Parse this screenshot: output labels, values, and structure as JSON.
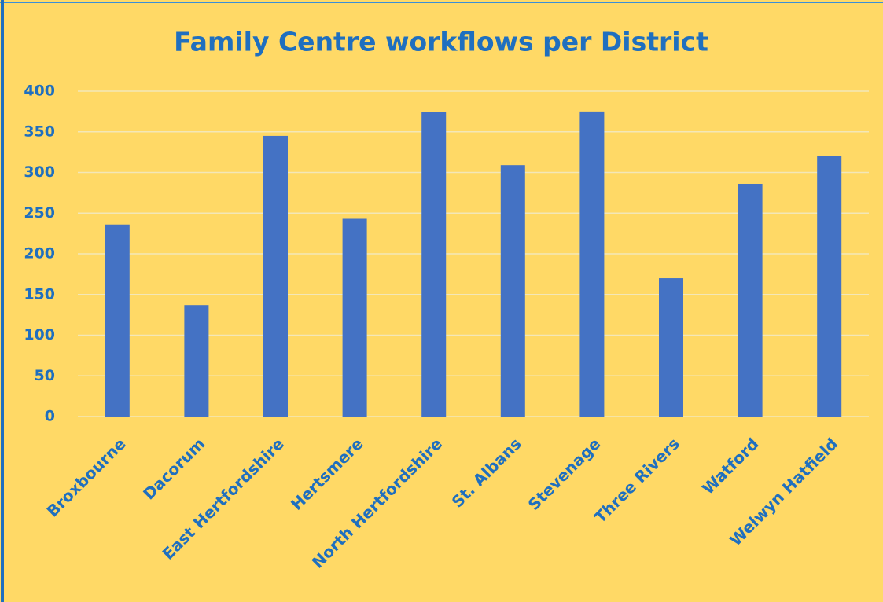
{
  "chart_data": {
    "type": "bar",
    "title": "Family Centre workflows per District",
    "categories": [
      "Broxbourne",
      "Dacorum",
      "East Hertfordshire",
      "Hertsmere",
      "North Hertfordshire",
      "St. Albans",
      "Stevenage",
      "Three Rivers",
      "Watford",
      "Welwyn Hatfield"
    ],
    "values": [
      236,
      137,
      345,
      243,
      374,
      309,
      375,
      170,
      286,
      320
    ],
    "color": "#4472c4",
    "ylim": [
      0,
      400
    ],
    "yticks": [
      0,
      50,
      100,
      150,
      200,
      250,
      300,
      350,
      400
    ],
    "grid": true
  }
}
